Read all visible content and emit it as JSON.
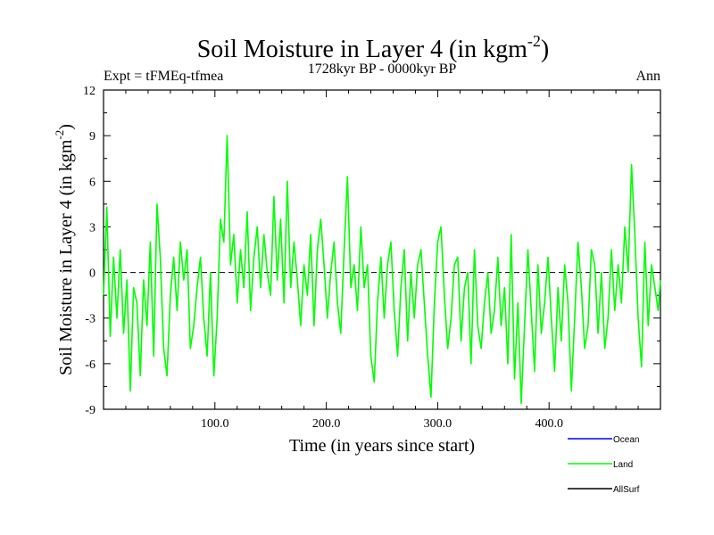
{
  "chart_data": {
    "type": "line",
    "title": "Soil Moisture in Layer 4 (in kgm",
    "title_sup": "-2",
    "title_end": ")",
    "subtitle": "1728kyr BP - 0000kyr BP",
    "left_label": "Expt = tFMEq-tfmea",
    "right_label": "Ann",
    "xlabel": "Time (in years since start)",
    "ylabel": "Soil Moisture in Layer 4 (in kgm",
    "ylabel_sup": "-2",
    "ylabel_end": ")",
    "xlim": [
      0,
      500
    ],
    "ylim": [
      -9,
      12
    ],
    "xticks": [
      100,
      200,
      300,
      400
    ],
    "xtick_labels": [
      "100.0",
      "200.0",
      "300.0",
      "400.0"
    ],
    "yticks": [
      -9,
      -6,
      -3,
      0,
      3,
      6,
      9,
      12
    ],
    "ytick_labels": [
      "-9",
      "-6",
      "-3",
      "0",
      "3",
      "6",
      "9",
      "12"
    ],
    "zero_line": 0,
    "legend": [
      {
        "name": "Ocean",
        "color": "#0000ff"
      },
      {
        "name": "Land",
        "color": "#00ff00"
      },
      {
        "name": "AllSurf",
        "color": "#000000"
      }
    ],
    "series": [
      {
        "name": "Land",
        "color": "#00ff00",
        "x": [
          0,
          3,
          6,
          9,
          12,
          15,
          18,
          21,
          24,
          27,
          30,
          33,
          36,
          39,
          42,
          45,
          48,
          51,
          54,
          57,
          60,
          63,
          66,
          69,
          72,
          75,
          78,
          81,
          84,
          87,
          90,
          93,
          96,
          99,
          102,
          105,
          108,
          111,
          114,
          117,
          120,
          123,
          126,
          129,
          132,
          135,
          138,
          141,
          144,
          147,
          150,
          153,
          156,
          159,
          162,
          165,
          168,
          171,
          174,
          177,
          180,
          183,
          186,
          189,
          192,
          195,
          198,
          201,
          204,
          207,
          210,
          213,
          216,
          219,
          222,
          225,
          228,
          231,
          234,
          237,
          240,
          243,
          246,
          249,
          252,
          255,
          258,
          261,
          264,
          267,
          270,
          273,
          276,
          279,
          282,
          285,
          288,
          291,
          294,
          297,
          300,
          303,
          306,
          309,
          312,
          315,
          318,
          321,
          324,
          327,
          330,
          333,
          336,
          339,
          342,
          345,
          348,
          351,
          354,
          357,
          360,
          363,
          366,
          369,
          372,
          375,
          378,
          381,
          384,
          387,
          390,
          393,
          396,
          399,
          402,
          405,
          408,
          411,
          414,
          417,
          420,
          423,
          426,
          429,
          432,
          435,
          438,
          441,
          444,
          447,
          450,
          453,
          456,
          459,
          462,
          465,
          468,
          471,
          474,
          477,
          480,
          483,
          486,
          489,
          492,
          495,
          498,
          500
        ],
        "y": [
          -1.5,
          4.3,
          -4.2,
          1.0,
          -3.0,
          1.5,
          -4.0,
          -0.5,
          -7.8,
          -1.0,
          -2.0,
          -6.8,
          -0.5,
          -3.5,
          2.0,
          -5.5,
          4.5,
          1.0,
          -5.0,
          -6.8,
          -1.5,
          1.0,
          -2.5,
          2.0,
          -0.5,
          1.5,
          -5.0,
          -3.5,
          -1.0,
          1.0,
          -3.0,
          -5.5,
          0.0,
          -6.8,
          -3.0,
          3.5,
          2.0,
          9.0,
          0.5,
          2.5,
          -2.0,
          1.5,
          -1.0,
          4.0,
          -2.5,
          1.0,
          3.0,
          -1.0,
          2.5,
          0.0,
          -1.5,
          5.0,
          -0.5,
          3.5,
          -2.0,
          6.0,
          -1.0,
          2.0,
          -0.5,
          -3.5,
          0.5,
          -1.5,
          2.5,
          -3.5,
          1.5,
          3.5,
          0.5,
          -3.0,
          0.0,
          2.0,
          -2.0,
          -4.0,
          1.5,
          6.3,
          -1.0,
          0.5,
          -2.5,
          3.0,
          -1.0,
          0.5,
          -5.5,
          -7.2,
          -2.0,
          1.0,
          -3.0,
          0.5,
          2.0,
          -2.5,
          -5.5,
          -1.0,
          1.5,
          -4.5,
          0.0,
          -3.0,
          0.5,
          1.5,
          -2.0,
          -5.5,
          -8.2,
          -2.0,
          2.0,
          3.0,
          -1.5,
          -5.0,
          -3.0,
          0.5,
          1.0,
          -4.5,
          -1.0,
          0.0,
          -6.0,
          1.5,
          -3.5,
          -5.0,
          -2.0,
          0.0,
          -4.0,
          -2.5,
          1.0,
          -3.5,
          -1.0,
          -6.0,
          2.5,
          -7.0,
          -2.0,
          -8.6,
          -3.5,
          1.5,
          -2.5,
          -6.5,
          0.5,
          -4.0,
          -2.0,
          1.0,
          -3.0,
          -6.5,
          -1.0,
          -4.5,
          0.5,
          -2.0,
          -7.8,
          -3.0,
          2.0,
          -1.0,
          -5.0,
          -3.5,
          1.5,
          0.5,
          -4.0,
          0.0,
          -5.0,
          -3.0,
          1.5,
          -2.5,
          0.5,
          -2.0,
          3.0,
          0.0,
          7.1,
          2.5,
          -3.0,
          -6.2,
          2.0,
          -3.5,
          0.5,
          -1.0,
          -2.5,
          -0.5
        ]
      }
    ]
  }
}
